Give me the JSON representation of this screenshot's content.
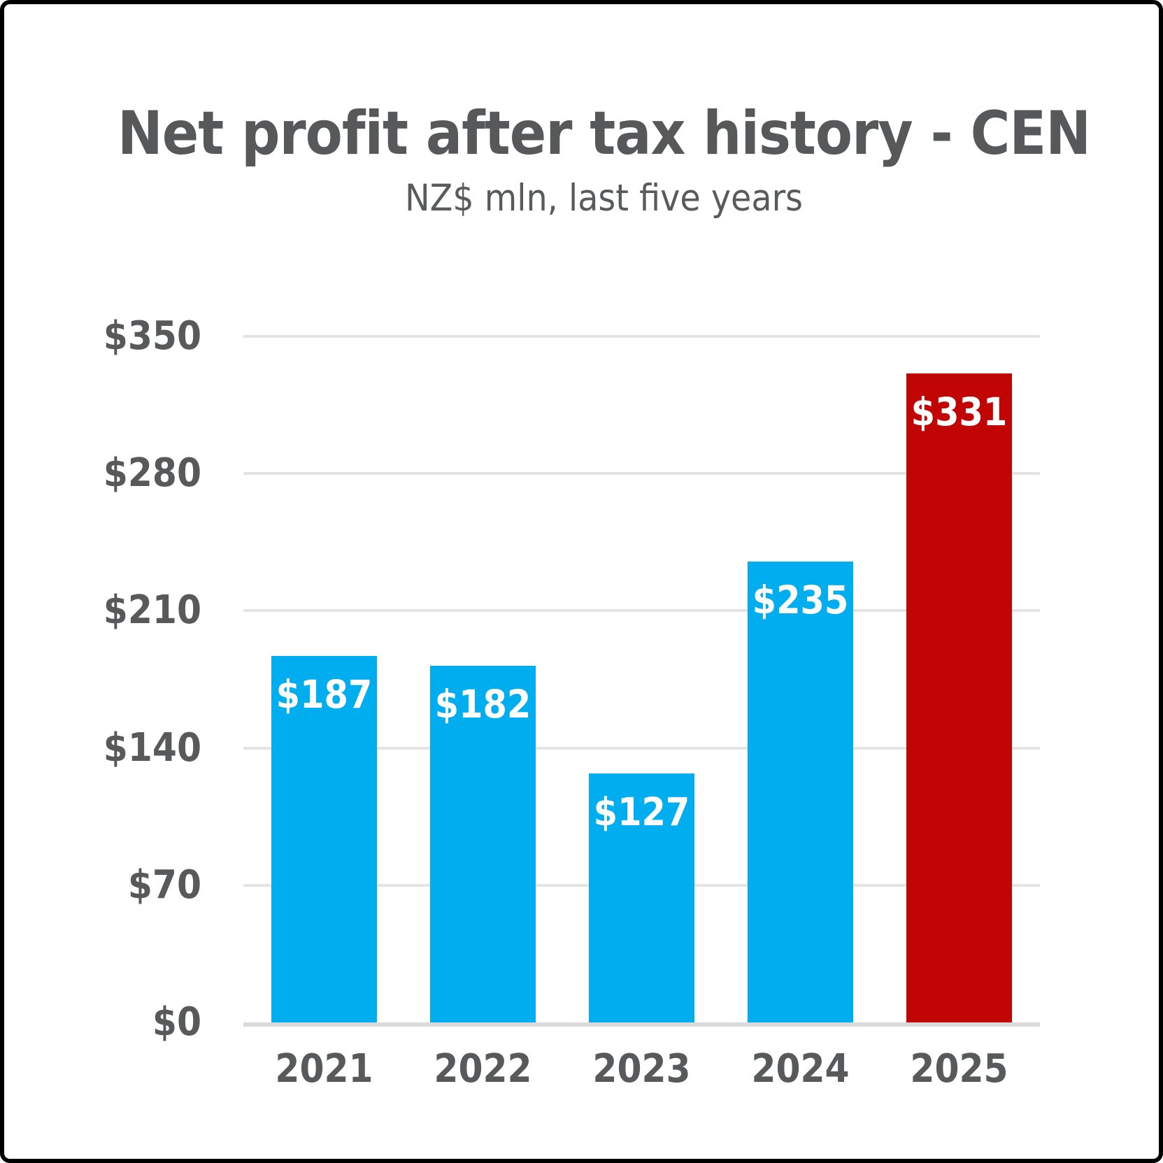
{
  "header": {
    "title": "Net profit after tax history - CEN",
    "subtitle": "NZ$ mln, last five years"
  },
  "chart_data": {
    "type": "bar",
    "title": "Net profit after tax history - CEN",
    "subtitle": "NZ$ mln, last five years",
    "categories": [
      "2021",
      "2022",
      "2023",
      "2024",
      "2025"
    ],
    "values": [
      187,
      182,
      127,
      235,
      331
    ],
    "value_labels": [
      "$187",
      "$182",
      "$127",
      "$235",
      "$331"
    ],
    "yticks": [
      0,
      70,
      140,
      210,
      280,
      350
    ],
    "ytick_labels": [
      "$0",
      "$70",
      "$140",
      "$210",
      "$280",
      "$350"
    ],
    "ylim": [
      0,
      350
    ],
    "xlabel": "",
    "ylabel": "",
    "grid": true,
    "legend_position": "none",
    "bar_colors": [
      "#00AEEF",
      "#00AEEF",
      "#00AEEF",
      "#00AEEF",
      "#C10505"
    ],
    "colors": {
      "bar_blue": "#00AEEF",
      "bar_red": "#C10505",
      "text_gray": "#58595B",
      "title_gray": "#57585A",
      "gridline": "#E4E4E4",
      "axis_line": "#DADADA",
      "value_label": "#FFFFFF",
      "frame_border": "#000000",
      "background": "#FFFFFF"
    }
  }
}
